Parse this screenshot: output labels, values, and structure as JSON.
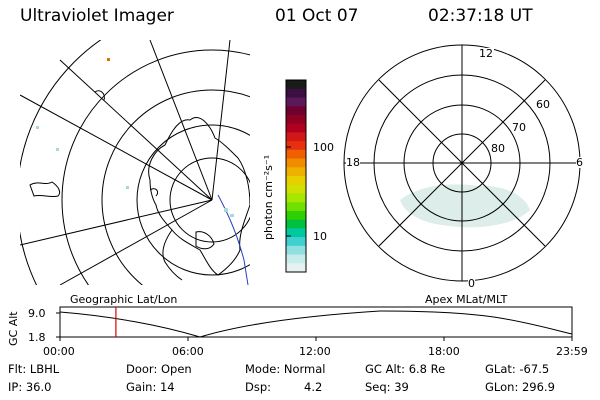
{
  "header": {
    "title": "Ultraviolet Imager",
    "date": "01 Oct 07",
    "time": "02:37:18 UT"
  },
  "colorbar": {
    "unit_label": "photon cm⁻²s⁻¹",
    "ticks": [
      "100",
      "10"
    ],
    "colors": [
      "#1a1a1a",
      "#3a1040",
      "#5a1a5a",
      "#700030",
      "#900020",
      "#b00020",
      "#d01818",
      "#e83010",
      "#f06000",
      "#f08c00",
      "#f0b000",
      "#e6d000",
      "#d0e000",
      "#a6e600",
      "#70e000",
      "#30d000",
      "#00c040",
      "#00c8a0",
      "#40d0d0",
      "#90e0e0",
      "#c8ecec",
      "#e6f2f2"
    ]
  },
  "polar_plot": {
    "mlt_labels": [
      "12",
      "18",
      "6",
      "0"
    ],
    "lat_labels": [
      "60",
      "70",
      "80"
    ]
  },
  "map_label": "Geographic Lat/Lon",
  "apex_label": "Apex MLat/MLT",
  "altitude_chart": {
    "ylabel": "GC Alt",
    "yticks": [
      "9.0",
      "1.8"
    ],
    "xticks": [
      "00:00",
      "06:00",
      "12:00",
      "18:00",
      "23:59"
    ],
    "current_time_hours": 2.62
  },
  "info": {
    "filter": "Flt: LBHL",
    "door": "Door: Open",
    "mode": "Mode: Normal",
    "gc_alt": "GC Alt: 6.8 Re",
    "glat": "GLat: -67.5",
    "ip": "IP: 36.0",
    "gain": "Gain: 14",
    "dsp_label": "Dsp:",
    "dsp_value": "4.2",
    "seq": "Seq: 39",
    "glon": "GLon: 296.9"
  }
}
